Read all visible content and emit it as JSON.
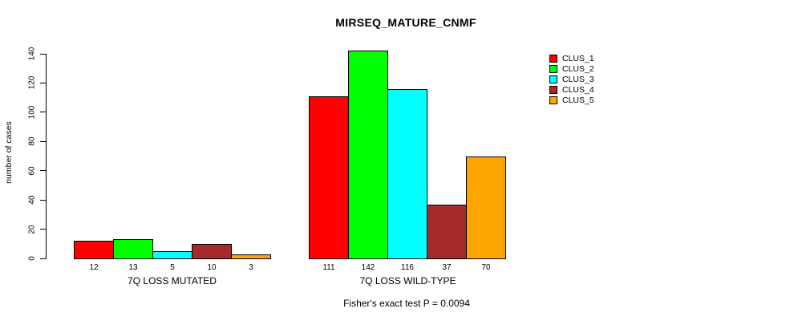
{
  "chart_data": {
    "type": "bar",
    "title": "MIRSEQ_MATURE_CNMF",
    "ylabel": "number of cases",
    "ylim": [
      0,
      140
    ],
    "y_ticks": [
      0,
      20,
      40,
      60,
      80,
      100,
      120,
      140
    ],
    "categories": [
      "7Q LOSS MUTATED",
      "7Q LOSS WILD-TYPE"
    ],
    "series": [
      {
        "name": "CLUS_1",
        "color": "#FF0000",
        "values": [
          12,
          111
        ]
      },
      {
        "name": "CLUS_2",
        "color": "#00FF00",
        "values": [
          13,
          142
        ]
      },
      {
        "name": "CLUS_3",
        "color": "#00FFFF",
        "values": [
          5,
          116
        ]
      },
      {
        "name": "CLUS_4",
        "color": "#A52A2A",
        "values": [
          10,
          37
        ]
      },
      {
        "name": "CLUS_5",
        "color": "#FFA500",
        "values": [
          3,
          70
        ]
      }
    ],
    "bar_value_labels_shown": true,
    "grid": false,
    "legend_position": "right",
    "annotation": "Fisher's exact test P = 0.0094"
  }
}
